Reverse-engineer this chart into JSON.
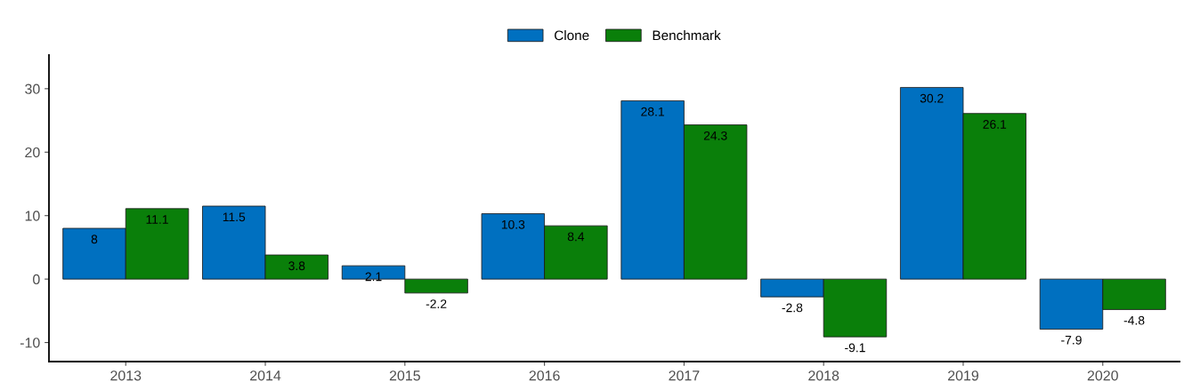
{
  "chart_data": {
    "type": "bar",
    "categories": [
      "2013",
      "2014",
      "2015",
      "2016",
      "2017",
      "2018",
      "2019",
      "2020"
    ],
    "series": [
      {
        "name": "Clone",
        "color": "#0070c0",
        "values": [
          8,
          11.5,
          2.1,
          10.3,
          28.1,
          -2.8,
          30.2,
          -7.9
        ]
      },
      {
        "name": "Benchmark",
        "color": "#0a7f0a",
        "values": [
          11.1,
          3.8,
          -2.2,
          8.4,
          24.3,
          -9.1,
          26.1,
          -4.8
        ]
      }
    ],
    "ylim": [
      -13,
      35.3
    ],
    "yticks": [
      -10,
      0,
      10,
      20,
      30
    ],
    "grid": false,
    "legend": "top",
    "data_labels": true
  }
}
